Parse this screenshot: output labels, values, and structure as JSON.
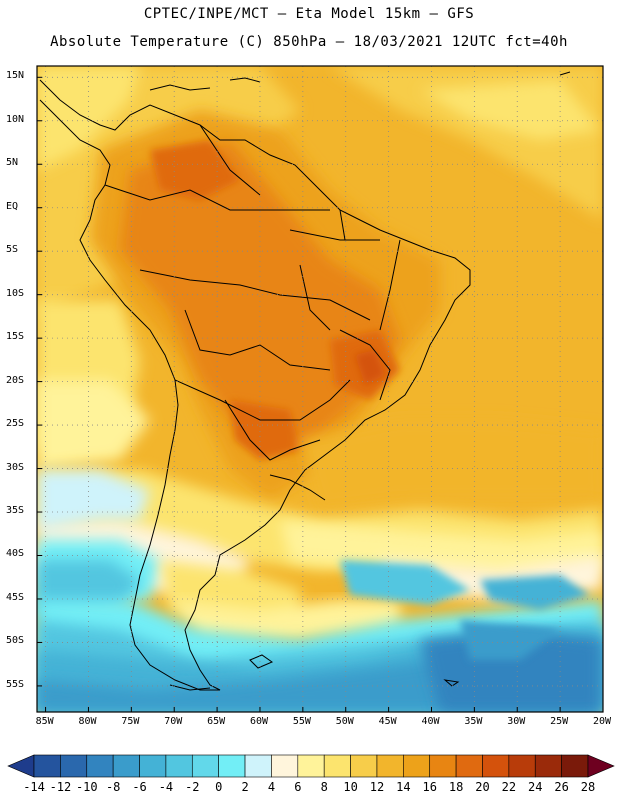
{
  "header": {
    "line1": "CPTEC/INPE/MCT –  Eta Model 15km – GFS",
    "line2": "Absolute Temperature (C) 850hPa – 18/03/2021 12UTC fct=40h"
  },
  "map": {
    "lat_labels": [
      "15N",
      "10N",
      "5N",
      "EQ",
      "5S",
      "10S",
      "15S",
      "20S",
      "25S",
      "30S",
      "35S",
      "40S",
      "45S",
      "50S",
      "55S"
    ],
    "lon_labels": [
      "85W",
      "80W",
      "75W",
      "70W",
      "65W",
      "60W",
      "55W",
      "50W",
      "45W",
      "40W",
      "35W",
      "30W",
      "25W",
      "20W"
    ]
  },
  "colorbar": {
    "labels": [
      "-14",
      "-12",
      "-10",
      "-8",
      "-6",
      "-4",
      "-2",
      "0",
      "2",
      "4",
      "6",
      "8",
      "10",
      "12",
      "14",
      "16",
      "18",
      "20",
      "22",
      "24",
      "26",
      "28"
    ],
    "colors": [
      "#1e3c8c",
      "#24549e",
      "#2a68ad",
      "#3284bf",
      "#3a9ccb",
      "#44b2d6",
      "#52c6e0",
      "#62d8ea",
      "#72eef6",
      "#cff3fb",
      "#fff5dc",
      "#fff39a",
      "#fce46e",
      "#f7cd4a",
      "#f2b52c",
      "#eda21a",
      "#e88512",
      "#e06a10",
      "#d4520c",
      "#b83c0a",
      "#9a2a0a",
      "#7a1a0a",
      "#6e0020"
    ]
  }
}
